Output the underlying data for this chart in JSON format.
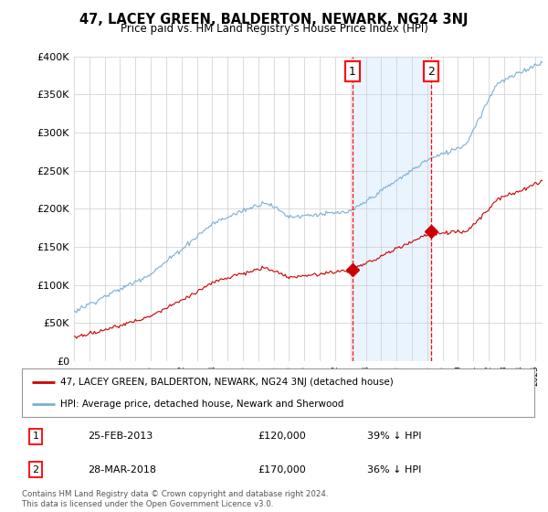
{
  "title": "47, LACEY GREEN, BALDERTON, NEWARK, NG24 3NJ",
  "subtitle": "Price paid vs. HM Land Registry's House Price Index (HPI)",
  "ylim": [
    0,
    400000
  ],
  "xlim_start": 1995.0,
  "xlim_end": 2025.5,
  "sale1_date": 2013.14,
  "sale1_price": 120000,
  "sale2_date": 2018.24,
  "sale2_price": 170000,
  "hpi_color": "#7bafd4",
  "price_color": "#cc0000",
  "legend_text1": "47, LACEY GREEN, BALDERTON, NEWARK, NG24 3NJ (detached house)",
  "legend_text2": "HPI: Average price, detached house, Newark and Sherwood",
  "table_row1": [
    "1",
    "25-FEB-2013",
    "£120,000",
    "39% ↓ HPI"
  ],
  "table_row2": [
    "2",
    "28-MAR-2018",
    "£170,000",
    "36% ↓ HPI"
  ],
  "footnote": "Contains HM Land Registry data © Crown copyright and database right 2024.\nThis data is licensed under the Open Government Licence v3.0.",
  "background_color": "#ffffff",
  "grid_color": "#cccccc",
  "shade_color": "#ddeeff"
}
